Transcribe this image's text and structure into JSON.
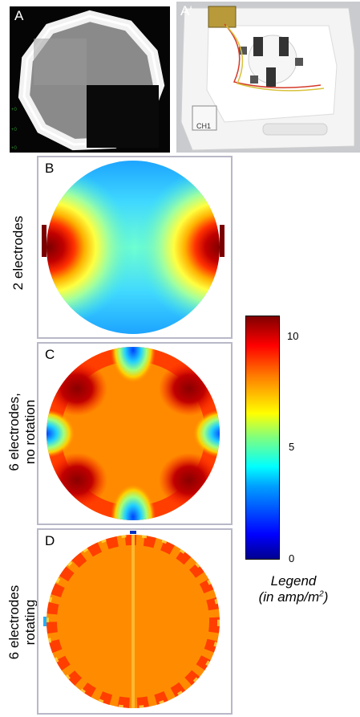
{
  "panels": {
    "A": {
      "letter": "A"
    },
    "A_prime": {
      "letter": "A‘",
      "tag": "CH1"
    },
    "B": {
      "letter": "B",
      "row_label": "2 electrodes"
    },
    "C": {
      "letter": "C",
      "row_label_line1": "6 electrodes,",
      "row_label_line2": "no rotation"
    },
    "D": {
      "letter": "D",
      "row_label_line1": "6 electrodes",
      "row_label_line2": "rotating"
    }
  },
  "colorbar": {
    "ticks": [
      "10",
      "5",
      "0"
    ],
    "tick_values": [
      10,
      5,
      0
    ],
    "range": [
      0,
      11
    ],
    "colormap": [
      "#00008f",
      "#0000ff",
      "#00a0ff",
      "#00ffff",
      "#7fff7f",
      "#ffff00",
      "#ff8000",
      "#ff0000",
      "#800000"
    ]
  },
  "legend": {
    "line1": "Legend",
    "line2_prefix": "(in amp/m",
    "line2_sup": "2",
    "line2_suffix": ")"
  }
}
